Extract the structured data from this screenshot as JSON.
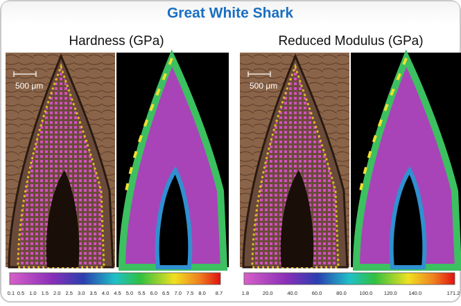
{
  "title": "Great White Shark",
  "panels": [
    {
      "label": "Hardness (GPa)",
      "scale_bar": "500 μm",
      "colorbar_ticks": [
        "0.1",
        "0.5",
        "1.0",
        "1.5",
        "2.0",
        "2.5",
        "3.0",
        "3.5",
        "4.0",
        "4.5",
        "5.0",
        "5.5",
        "6.0",
        "6.5",
        "7.0",
        "7.5",
        "8.0",
        "8.7"
      ]
    },
    {
      "label": "Reduced Modulus (GPa)",
      "scale_bar": "500 μm",
      "colorbar_ticks": [
        "1.8",
        "20.0",
        "40.0",
        "60.0",
        "80.0",
        "100.0",
        "120.0",
        "140.0",
        "171.2"
      ]
    }
  ]
}
